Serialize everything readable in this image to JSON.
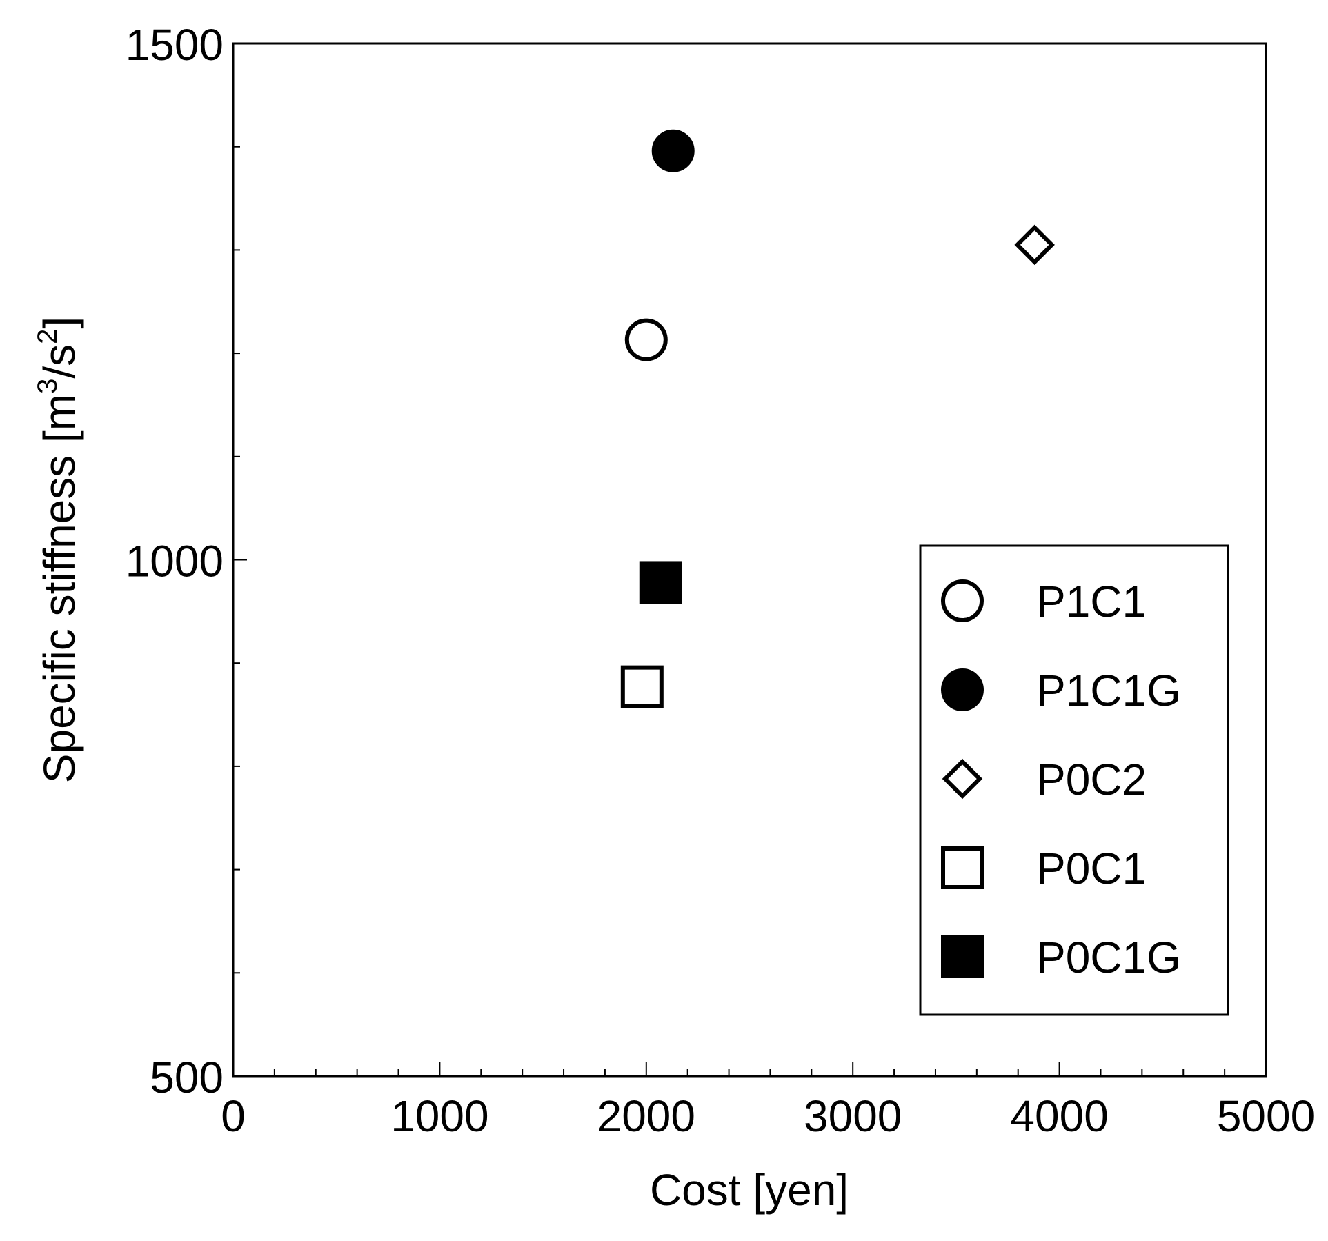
{
  "chart_data": {
    "type": "scatter",
    "title": "",
    "xlabel": "Cost [yen]",
    "ylabel": {
      "prefix": "Specific stiffness [m",
      "sup1": "3",
      "mid": "/s",
      "sup2": "2",
      "suffix": "]"
    },
    "xlim": [
      0,
      5000
    ],
    "ylim": [
      500,
      1500
    ],
    "xticks": [
      0,
      1000,
      2000,
      3000,
      4000,
      5000
    ],
    "yticks": [
      500,
      1000,
      1500
    ],
    "x_minor_step": 200,
    "y_minor_step": 100,
    "grid": false,
    "legend_position": "lower-right",
    "series": [
      {
        "name": "P1C1",
        "marker": "circle",
        "filled": false,
        "points": [
          {
            "x": 2000,
            "y": 1213
          }
        ]
      },
      {
        "name": "P1C1G",
        "marker": "circle",
        "filled": true,
        "points": [
          {
            "x": 2130,
            "y": 1396
          }
        ]
      },
      {
        "name": "P0C2",
        "marker": "diamond",
        "filled": false,
        "points": [
          {
            "x": 3880,
            "y": 1305
          }
        ]
      },
      {
        "name": "P0C1",
        "marker": "square",
        "filled": false,
        "points": [
          {
            "x": 1980,
            "y": 877
          }
        ]
      },
      {
        "name": "P0C1G",
        "marker": "square",
        "filled": true,
        "points": [
          {
            "x": 2070,
            "y": 978
          }
        ]
      }
    ],
    "colors": {
      "marker": "#000000",
      "axis": "#000000",
      "background": "#ffffff"
    }
  }
}
